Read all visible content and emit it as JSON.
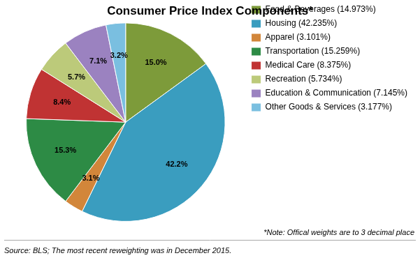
{
  "chart_data": {
    "type": "pie",
    "title": "Consumer Price Index Components*",
    "categories": [
      "Food & Beverages (14.973%)",
      "Housing (42.235%)",
      "Apparel (3.101%)",
      "Transportation (15.259%)",
      "Medical Care (8.375%)",
      "Recreation (5.734%)",
      "Education & Communication (7.145%)",
      "Other Goods & Services (3.177%)"
    ],
    "values": [
      14.973,
      42.235,
      3.101,
      15.259,
      8.375,
      5.734,
      7.145,
      3.177
    ],
    "value_labels": [
      "15.0%",
      "42.2%",
      "3.1%",
      "15.3%",
      "8.4%",
      "5.7%",
      "7.1%",
      "3.2%"
    ],
    "colors": [
      "#7D9B3A",
      "#3A9DBF",
      "#D2863A",
      "#2D8B45",
      "#C03333",
      "#BCCA7A",
      "#9B82C0",
      "#7ABFE0"
    ],
    "data_labels": true,
    "legend": "right",
    "annotations": [
      "*Note: Offical weights are to 3 decimal place",
      "Source: BLS; The most recent reweighting was in December 2015."
    ]
  }
}
